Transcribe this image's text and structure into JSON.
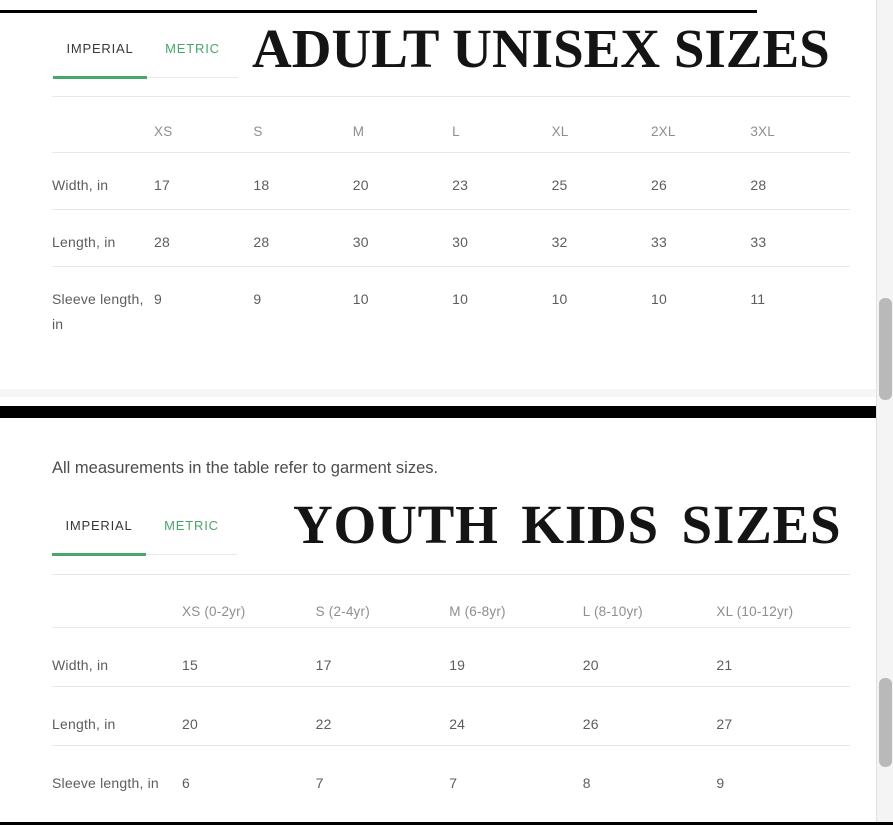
{
  "colors": {
    "accent_green": "#4aa56b",
    "seam_divider": "#000000"
  },
  "adult": {
    "tabs": {
      "imperial": "IMPERIAL",
      "metric": "METRIC"
    },
    "title": "ADULT UNISEX SIZES",
    "table": {
      "columns": [
        "XS",
        "S",
        "M",
        "L",
        "XL",
        "2XL",
        "3XL"
      ],
      "rows": [
        {
          "label": "Width, in",
          "values": [
            "17",
            "18",
            "20",
            "23",
            "25",
            "26",
            "28"
          ]
        },
        {
          "label": "Length, in",
          "values": [
            "28",
            "28",
            "30",
            "30",
            "32",
            "33",
            "33"
          ]
        },
        {
          "label": "Sleeve length, in",
          "values": [
            "9",
            "9",
            "10",
            "10",
            "10",
            "10",
            "11"
          ]
        }
      ]
    }
  },
  "note": "All measurements in the table refer to garment sizes.",
  "youth": {
    "tabs": {
      "imperial": "IMPERIAL",
      "metric": "METRIC"
    },
    "title": "YOUTH KIDS SIZES",
    "table": {
      "columns": [
        "XS (0-2yr)",
        "S (2-4yr)",
        "M (6-8yr)",
        "L (8-10yr)",
        "XL (10-12yr)"
      ],
      "rows": [
        {
          "label": "Width, in",
          "values": [
            "15",
            "17",
            "19",
            "20",
            "21"
          ]
        },
        {
          "label": "Length, in",
          "values": [
            "20",
            "22",
            "24",
            "26",
            "27"
          ]
        },
        {
          "label": "Sleeve length, in",
          "values": [
            "6",
            "7",
            "7",
            "8",
            "9"
          ]
        }
      ]
    }
  }
}
